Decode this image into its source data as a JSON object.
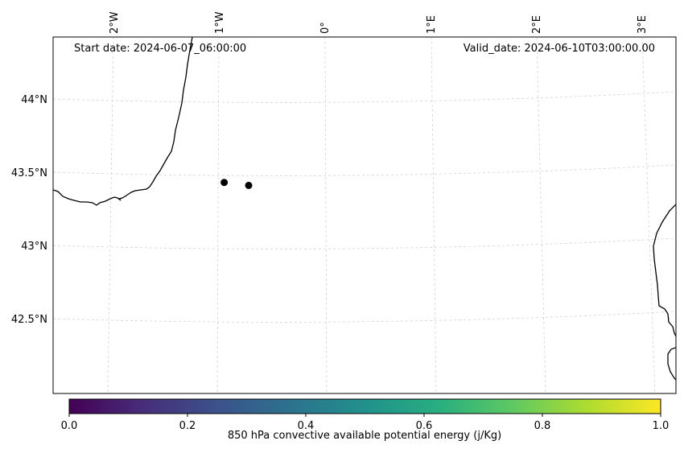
{
  "map": {
    "start_date_text": "Start date: 2024-06-07_06:00:00",
    "valid_date_text": "Valid_date: 2024-06-10T03:00:00.00",
    "lon_labels": [
      "2°W",
      "1°W",
      "0°",
      "1°E",
      "2°E",
      "3°E"
    ],
    "lat_labels": [
      "44°N",
      "43.5°N",
      "43°N",
      "42.5°N"
    ],
    "points": [
      {
        "lon": -0.95,
        "lat": 43.43
      },
      {
        "lon": -0.72,
        "lat": 43.41
      }
    ],
    "colors": {
      "coastline": "#000000",
      "gridline": "#cccccc",
      "point": "#000000"
    }
  },
  "colorbar": {
    "label": "850 hPa convective available potential energy (j/Kg)",
    "ticks": [
      "0.0",
      "0.2",
      "0.4",
      "0.6",
      "0.8",
      "1.0"
    ],
    "colormap": "viridis",
    "range": [
      0.0,
      1.0
    ]
  }
}
